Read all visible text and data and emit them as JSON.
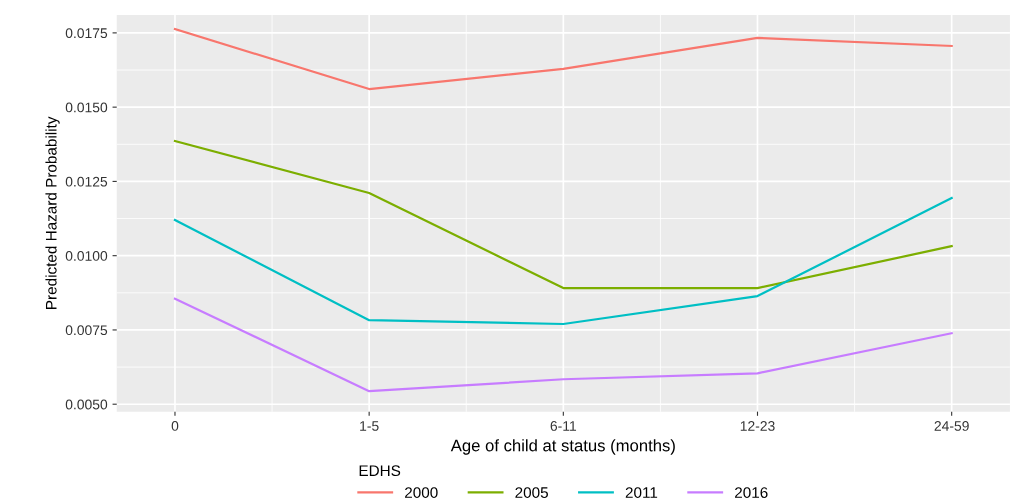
{
  "chart_data": {
    "type": "line",
    "xlabel": "Age of child at status (months)",
    "ylabel": "Predicted Hazard Probability",
    "categories": [
      "0",
      "1-5",
      "6-11",
      "12-23",
      "24-59"
    ],
    "series": [
      {
        "name": "2000",
        "color": "#f8766d",
        "values": [
          0.01763,
          0.01561,
          0.01629,
          0.01733,
          0.01706
        ]
      },
      {
        "name": "2005",
        "color": "#7cae00",
        "values": [
          0.01386,
          0.01211,
          0.00891,
          0.00891,
          0.01032
        ]
      },
      {
        "name": "2011",
        "color": "#00bfc4",
        "values": [
          0.0112,
          0.00783,
          0.0077,
          0.00864,
          0.01194
        ]
      },
      {
        "name": "2016",
        "color": "#c77cff",
        "values": [
          0.00855,
          0.00544,
          0.00584,
          0.00604,
          0.00739
        ]
      }
    ],
    "legend_title": "EDHS",
    "legend": "bottom",
    "grid": true,
    "ylim": [
      0.00475,
      0.0181
    ],
    "yticks": [
      {
        "value": 0.005,
        "label": "0.0050"
      },
      {
        "value": 0.0075,
        "label": "0.0075"
      },
      {
        "value": 0.01,
        "label": "0.0100"
      },
      {
        "value": 0.0125,
        "label": "0.0125"
      },
      {
        "value": 0.015,
        "label": "0.0150"
      },
      {
        "value": 0.0175,
        "label": "0.0175"
      }
    ]
  }
}
